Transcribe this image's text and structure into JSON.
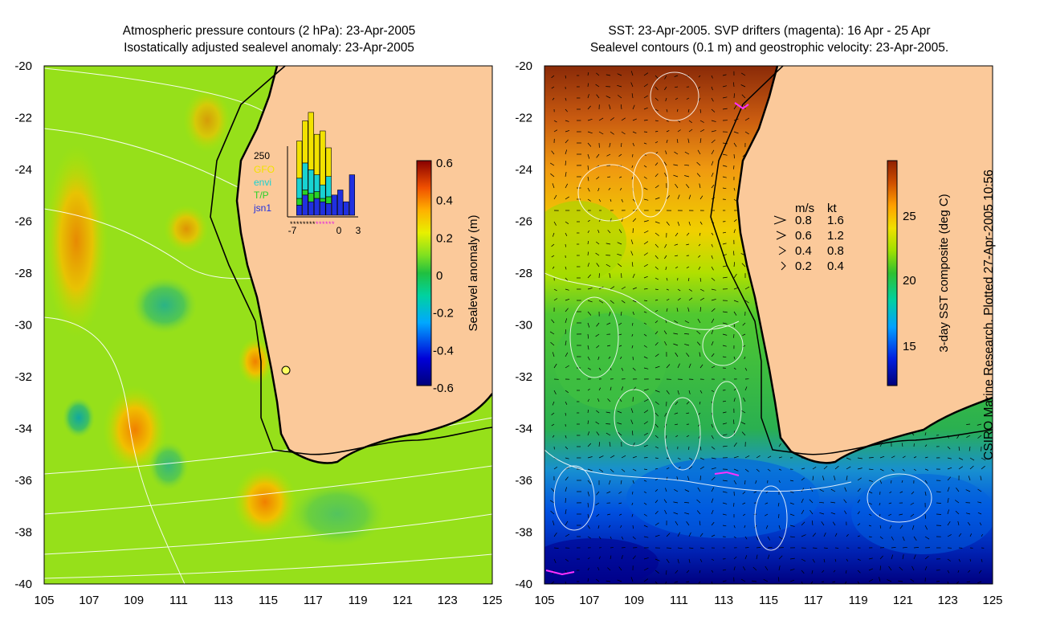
{
  "left_panel": {
    "title_line1": "Atmospheric pressure contours (2 hPa): 23-Apr-2005",
    "title_line2": "Isostatically adjusted sealevel anomaly: 23-Apr-2005",
    "x_ticks": [
      "105",
      "107",
      "109",
      "111",
      "113",
      "115",
      "117",
      "119",
      "121",
      "123",
      "125"
    ],
    "y_ticks": [
      "-20",
      "-22",
      "-24",
      "-26",
      "-28",
      "-30",
      "-32",
      "-34",
      "-36",
      "-38",
      "-40"
    ],
    "colorbar": {
      "label": "Sealevel anomaly (m)",
      "ticks": [
        "0.6",
        "0.4",
        "0.2",
        "0",
        "-0.2",
        "-0.4",
        "-0.6"
      ]
    },
    "inset": {
      "y_max_label": "250",
      "legend": [
        {
          "label": "GFO",
          "color": "#f2e200"
        },
        {
          "label": "envi",
          "color": "#18d2d2"
        },
        {
          "label": "T/P",
          "color": "#28d228"
        },
        {
          "label": "jsn1",
          "color": "#2030e0"
        }
      ],
      "x_ticks": [
        "-7",
        "0",
        "3"
      ],
      "bars": [
        {
          "day": -7,
          "jsn1": 0,
          "tp": 0,
          "envi": 0,
          "gfo": 0
        },
        {
          "day": -6,
          "jsn1": 30,
          "tp": 20,
          "envi": 60,
          "gfo": 110
        },
        {
          "day": -5,
          "jsn1": 60,
          "tp": 15,
          "envi": 80,
          "gfo": 125
        },
        {
          "day": -4,
          "jsn1": 40,
          "tp": 25,
          "envi": 70,
          "gfo": 170
        },
        {
          "day": -3,
          "jsn1": 50,
          "tp": 20,
          "envi": 50,
          "gfo": 120
        },
        {
          "day": -2,
          "jsn1": 40,
          "tp": 10,
          "envi": 40,
          "gfo": 160
        },
        {
          "day": -1,
          "jsn1": 35,
          "tp": 20,
          "envi": 60,
          "gfo": 85
        },
        {
          "day": 0,
          "jsn1": 60,
          "tp": 0,
          "envi": 0,
          "gfo": 0
        },
        {
          "day": 1,
          "jsn1": 75,
          "tp": 0,
          "envi": 0,
          "gfo": 0
        },
        {
          "day": 2,
          "jsn1": 40,
          "tp": 0,
          "envi": 0,
          "gfo": 0
        },
        {
          "day": 3,
          "jsn1": 120,
          "tp": 0,
          "envi": 0,
          "gfo": 0
        }
      ]
    }
  },
  "right_panel": {
    "title_line1": "SST: 23-Apr-2005. SVP drifters (magenta): 16 Apr - 25 Apr",
    "title_line2": "Sealevel contours (0.1 m) and geostrophic velocity: 23-Apr-2005.",
    "x_ticks": [
      "105",
      "107",
      "109",
      "111",
      "113",
      "115",
      "117",
      "119",
      "121",
      "123",
      "125"
    ],
    "y_ticks": [
      "-20",
      "-22",
      "-24",
      "-26",
      "-28",
      "-30",
      "-32",
      "-34",
      "-36",
      "-38",
      "-40"
    ],
    "colorbar": {
      "label": "3-day SST composite (deg C)",
      "ticks": [
        "25",
        "20",
        "15"
      ]
    },
    "velocity_legend": {
      "header_ms": "m/s",
      "header_kt": "kt",
      "rows": [
        {
          "ms": "0.8",
          "kt": "1.6"
        },
        {
          "ms": "0.6",
          "kt": "1.2"
        },
        {
          "ms": "0.4",
          "kt": "0.8"
        },
        {
          "ms": "0.2",
          "kt": "0.4"
        }
      ]
    }
  },
  "credit": "CSIRO Marine Research. Plotted 27-Apr-2005 10:56",
  "colors": {
    "land": "#fbc99a",
    "ocean_green": "#8ee01a",
    "coast": "#000000"
  }
}
